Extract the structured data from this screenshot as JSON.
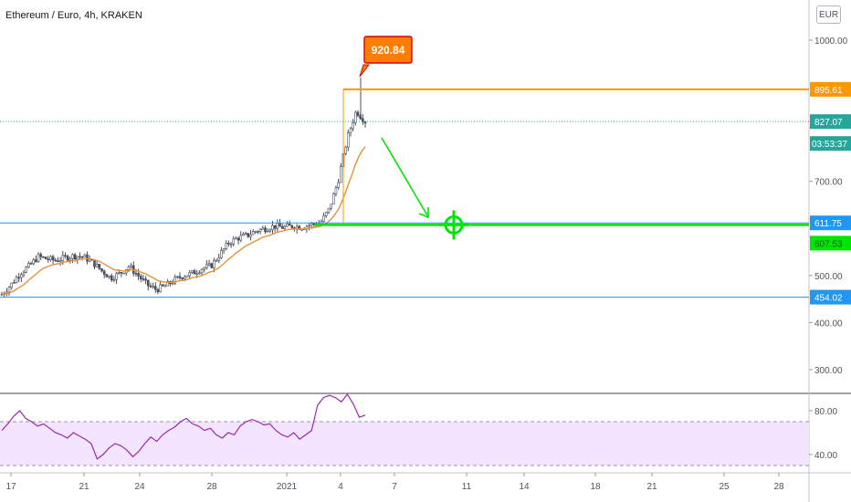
{
  "header": {
    "symbol_title": "Ethereum / Euro, 4h, KRAKEN",
    "currency_button": "EUR"
  },
  "colors": {
    "up": "#26a69a",
    "candle": "#4a4f5c",
    "ema": "#e8913c",
    "blue_line": "#2196f3",
    "orange_line": "#ff9800",
    "green_target": "#00e600",
    "callout": "#ff7d00",
    "callout_border": "#d60000",
    "rsi": "#9c27b0",
    "rsi_band": "#f3e5ff",
    "current_price_tag": "#26a69a"
  },
  "icons": {
    "target": "crosshair-target-icon",
    "arrow": "down-right-arrow-icon"
  },
  "chart_data": [
    {
      "type": "candlestick",
      "ylim": [
        240,
        1060
      ],
      "yticks": [
        "1000.00",
        "700.00",
        "500.00",
        "400.00",
        "300.00"
      ],
      "ytick_values": [
        1000,
        700,
        500,
        400,
        300
      ],
      "xticks": [
        "17",
        "21",
        "24",
        "28",
        "2021",
        "4",
        "7",
        "11",
        "14",
        "18",
        "21",
        "25",
        "28"
      ],
      "ohlc_closes_approx": [
        460,
        480,
        505,
        520,
        540,
        535,
        532,
        538,
        542,
        540,
        528,
        510,
        495,
        505,
        520,
        500,
        480,
        470,
        478,
        490,
        500,
        505,
        515,
        520,
        545,
        570,
        580,
        585,
        595,
        600,
        605,
        602,
        605,
        603,
        608,
        610,
        640,
        700,
        790,
        850,
        827
      ],
      "price_labels": {
        "high_callout": "920.84",
        "resistance": "895.61",
        "current": "827.07",
        "countdown": "03:53:37",
        "support_upper": "611.75",
        "target": "607.53",
        "support_lower": "454.02"
      },
      "levels": {
        "resistance": 895.61,
        "current": 827.07,
        "support_upper": 611.75,
        "target": 607.53,
        "support_lower": 454.02,
        "high": 920.84
      }
    },
    {
      "type": "line",
      "name": "",
      "ylim": [
        25,
        100
      ],
      "yticks": [
        "80.00",
        "40.00"
      ],
      "ytick_values": [
        80,
        40
      ],
      "band": [
        30,
        70
      ],
      "values": [
        62,
        68,
        75,
        80,
        73,
        70,
        66,
        68,
        64,
        60,
        58,
        55,
        60,
        57,
        54,
        50,
        36,
        40,
        46,
        50,
        48,
        44,
        38,
        43,
        50,
        56,
        52,
        58,
        62,
        65,
        70,
        73,
        68,
        66,
        62,
        64,
        58,
        55,
        60,
        58,
        66,
        70,
        72,
        70,
        67,
        68,
        62,
        58,
        56,
        60,
        54,
        58,
        62,
        85,
        92,
        94,
        92,
        88,
        95,
        86,
        74,
        76
      ]
    }
  ]
}
